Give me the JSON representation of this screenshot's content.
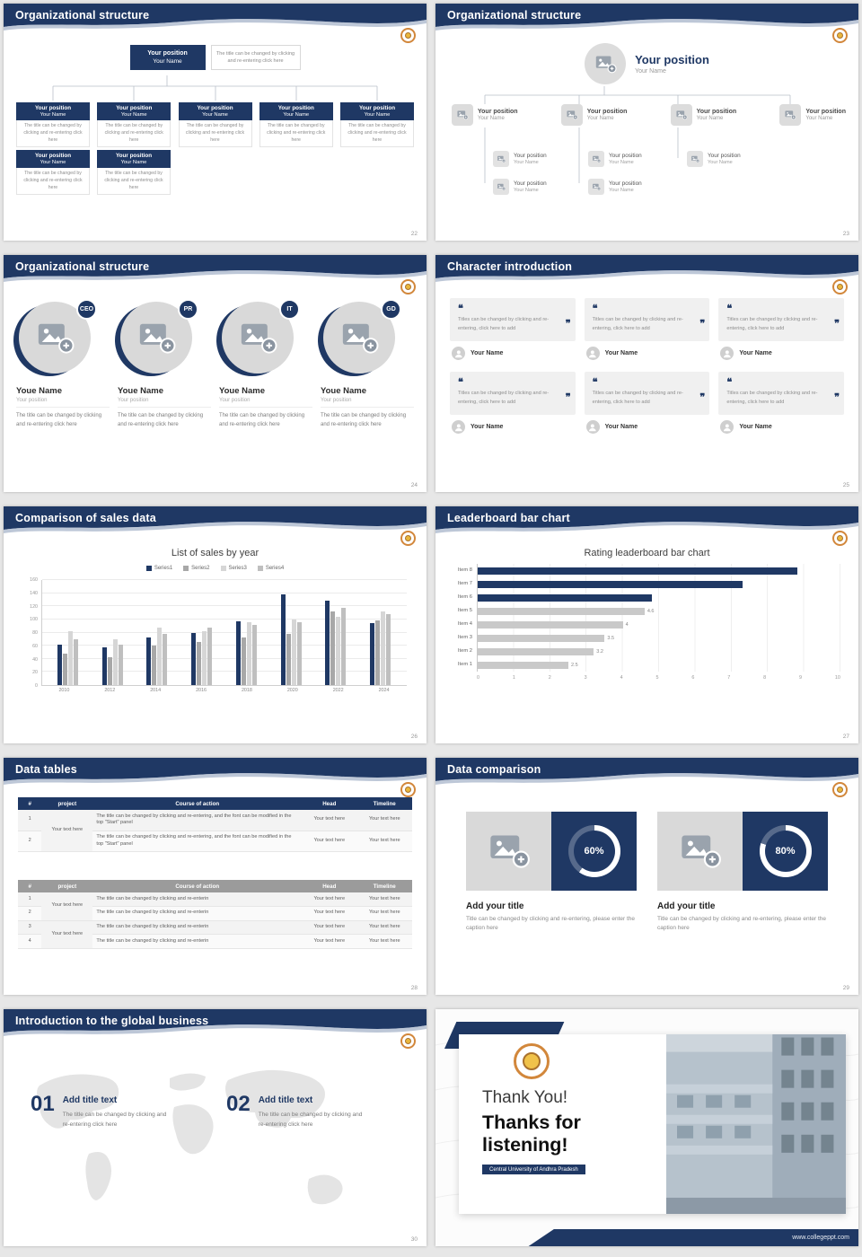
{
  "brand": {
    "navy": "#1f3864",
    "orange": "#d2873b",
    "gold": "#e9b63c"
  },
  "slides": {
    "s22": {
      "title": "Organizational structure",
      "page": "22",
      "root": {
        "position": "Your position",
        "name": "Your Name"
      },
      "root_desc": "The title can be changed by clicking and re-entering click here",
      "level1": [
        {
          "position": "Your position",
          "name": "Your Name",
          "desc": "The title can be changed by clicking and re-entering click here"
        },
        {
          "position": "Your position",
          "name": "Your Name",
          "desc": "The title can be changed by clicking and re-entering click here"
        },
        {
          "position": "Your position",
          "name": "Your Name",
          "desc": "The title can be changed by clicking and re-entering click here"
        },
        {
          "position": "Your position",
          "name": "Your Name",
          "desc": "The title can be changed by clicking and re-entering click here"
        },
        {
          "position": "Your position",
          "name": "Your Name",
          "desc": "The title can be changed by clicking and re-entering click here"
        }
      ],
      "level2": [
        {
          "position": "Your position",
          "name": "Your Name",
          "desc": "The title can be changed by clicking and re-entering click here"
        },
        {
          "position": "Your position",
          "name": "Your Name",
          "desc": "The title can be changed by clicking and re-entering click here"
        }
      ]
    },
    "s23": {
      "title": "Organizational structure",
      "page": "23",
      "root": {
        "position": "Your position",
        "name": "Your Name"
      },
      "nodes": [
        {
          "position": "Your position",
          "name": "Your Name"
        },
        {
          "position": "Your position",
          "name": "Your Name"
        },
        {
          "position": "Your position",
          "name": "Your Name"
        },
        {
          "position": "Your position",
          "name": "Your Name"
        }
      ],
      "subs": [
        [
          {
            "position": "Your position",
            "name": "Your Name"
          },
          {
            "position": "Your position",
            "name": "Your Name"
          }
        ],
        [
          {
            "position": "Your position",
            "name": "Your Name"
          },
          {
            "position": "Your position",
            "name": "Your Name"
          }
        ],
        [
          {
            "position": "Your position",
            "name": "Your Name"
          }
        ]
      ]
    },
    "s24": {
      "title": "Organizational structure",
      "page": "24",
      "profiles": [
        {
          "badge": "CEO",
          "name": "Youe Name",
          "position": "Your position",
          "desc": "The title can be changed by clicking and re-entering click here"
        },
        {
          "badge": "PR",
          "name": "Youe Name",
          "position": "Your position",
          "desc": "The title can be changed by clicking and re-entering click here"
        },
        {
          "badge": "IT",
          "name": "Youe Name",
          "position": "Your position",
          "desc": "The title can be changed by clicking and re-entering click here"
        },
        {
          "badge": "GD",
          "name": "Youe Name",
          "position": "Your position",
          "desc": "The title can be changed by clicking and re-entering click here"
        }
      ]
    },
    "s25": {
      "title": "Character introduction",
      "page": "25",
      "cards": [
        {
          "text": "Titles can be changed by clicking and re-entering, click here to add",
          "name": "Your Name"
        },
        {
          "text": "Titles can be changed by clicking and re-entering, click here to add",
          "name": "Your Name"
        },
        {
          "text": "Titles can be changed by clicking and re-entering, click here to add",
          "name": "Your Name"
        },
        {
          "text": "Titles can be changed by clicking and re-entering, click here to add",
          "name": "Your Name"
        },
        {
          "text": "Titles can be changed by clicking and re-entering, click here to add",
          "name": "Your Name"
        },
        {
          "text": "Titles can be changed by clicking and re-entering, click here to add",
          "name": "Your Name"
        }
      ]
    },
    "s26": {
      "title": "Comparison of sales data",
      "page": "26"
    },
    "s27": {
      "title": "Leaderboard bar chart",
      "page": "27"
    },
    "s28": {
      "title": "Data tables",
      "page": "28",
      "table1": {
        "columns": [
          "#",
          "project",
          "Course of action",
          "Head",
          "Timeline"
        ],
        "project": "Your text here",
        "rows": [
          {
            "num": "1",
            "course": "The title can be changed by clicking and re-entering, and the font can be modified in the top \"Start\" panel",
            "head": "Your text here",
            "timeline": "Your text here"
          },
          {
            "num": "2",
            "course": "The title can be changed by clicking and re-entering, and the font can be modified in the top \"Start\" panel",
            "head": "Your text here",
            "timeline": "Your text here"
          }
        ]
      },
      "table2": {
        "columns": [
          "#",
          "project",
          "Course of action",
          "Head",
          "Timeline"
        ],
        "projects": [
          "Your text here",
          "Your text here"
        ],
        "rows": [
          {
            "num": "1",
            "course": "The title can be changed by clicking and re-enterin",
            "head": "Your text here",
            "timeline": "Your text here"
          },
          {
            "num": "2",
            "course": "The title can be changed by clicking and re-enterin",
            "head": "Your text here",
            "timeline": "Your text here"
          },
          {
            "num": "3",
            "course": "The title can be changed by clicking and re-enterin",
            "head": "Your text here",
            "timeline": "Your text here"
          },
          {
            "num": "4",
            "course": "The title can be changed by clicking and re-enterin",
            "head": "Your text here",
            "timeline": "Your text here"
          }
        ]
      }
    },
    "s29": {
      "title": "Data comparison",
      "page": "29",
      "cards": [
        {
          "percent": 60,
          "percent_label": "60%",
          "title": "Add your title",
          "caption": "Title can be changed by clicking and re-entering, please enter the caption here"
        },
        {
          "percent": 80,
          "percent_label": "80%",
          "title": "Add your title",
          "caption": "Title can be changed by clicking and re-entering, please enter the caption here"
        }
      ]
    },
    "s30": {
      "title": "Introduction to the global business",
      "page": "30",
      "items": [
        {
          "number": "01",
          "title": "Add title text",
          "desc": "The title can be changed by clicking and re-entering click here"
        },
        {
          "number": "02",
          "title": "Add title text",
          "desc": "The title can be changed by clicking and re-entering click here"
        }
      ]
    },
    "s31": {
      "line1": "Thank You!",
      "line2": "Thanks for listening!",
      "university": "Central University of Andhra Pradesh",
      "website": "www.collegeppt.com"
    }
  },
  "chart_data": [
    {
      "type": "bar",
      "title": "List of sales by year",
      "x": [
        "2010",
        "2012",
        "2014",
        "2016",
        "2018",
        "2020",
        "2022",
        "2024"
      ],
      "series": [
        {
          "name": "Series1",
          "color": "#1f3864",
          "values": [
            62,
            58,
            73,
            79,
            97,
            138,
            128,
            95
          ]
        },
        {
          "name": "Series2",
          "color": "#a8a8a8",
          "values": [
            48,
            42,
            60,
            66,
            72,
            78,
            112,
            98
          ]
        },
        {
          "name": "Series3",
          "color": "#d6d6d6",
          "values": [
            82,
            70,
            88,
            82,
            96,
            100,
            104,
            112
          ]
        },
        {
          "name": "Series4",
          "color": "#bfbfbf",
          "values": [
            70,
            62,
            78,
            88,
            92,
            96,
            118,
            108
          ]
        }
      ],
      "ylim": [
        0,
        160
      ],
      "ystep": 20,
      "xlabel": "",
      "ylabel": "",
      "grid": true,
      "legend_position": "top"
    },
    {
      "type": "bar-horizontal",
      "title": "Rating leaderboard bar chart",
      "items": [
        {
          "label": "Item 8",
          "value": 8.8,
          "color": "#1f3864",
          "show_value": false
        },
        {
          "label": "Item 7",
          "value": 7.3,
          "color": "#1f3864",
          "show_value": false
        },
        {
          "label": "Item 6",
          "value": 4.8,
          "color": "#1f3864",
          "show_value": false
        },
        {
          "label": "Item 5",
          "value": 4.6,
          "color": "#c9c9c9",
          "show_value": true
        },
        {
          "label": "Item 4",
          "value": 4,
          "color": "#c9c9c9",
          "show_value": true
        },
        {
          "label": "Item 3",
          "value": 3.5,
          "color": "#c9c9c9",
          "show_value": true
        },
        {
          "label": "Item 2",
          "value": 3.2,
          "color": "#c9c9c9",
          "show_value": true
        },
        {
          "label": "Item 1",
          "value": 2.5,
          "color": "#c9c9c9",
          "show_value": true
        }
      ],
      "xlim": [
        0,
        10
      ],
      "xticks": [
        0,
        1,
        2,
        3,
        4,
        5,
        6,
        7,
        8,
        9,
        10
      ],
      "grid": true
    }
  ]
}
